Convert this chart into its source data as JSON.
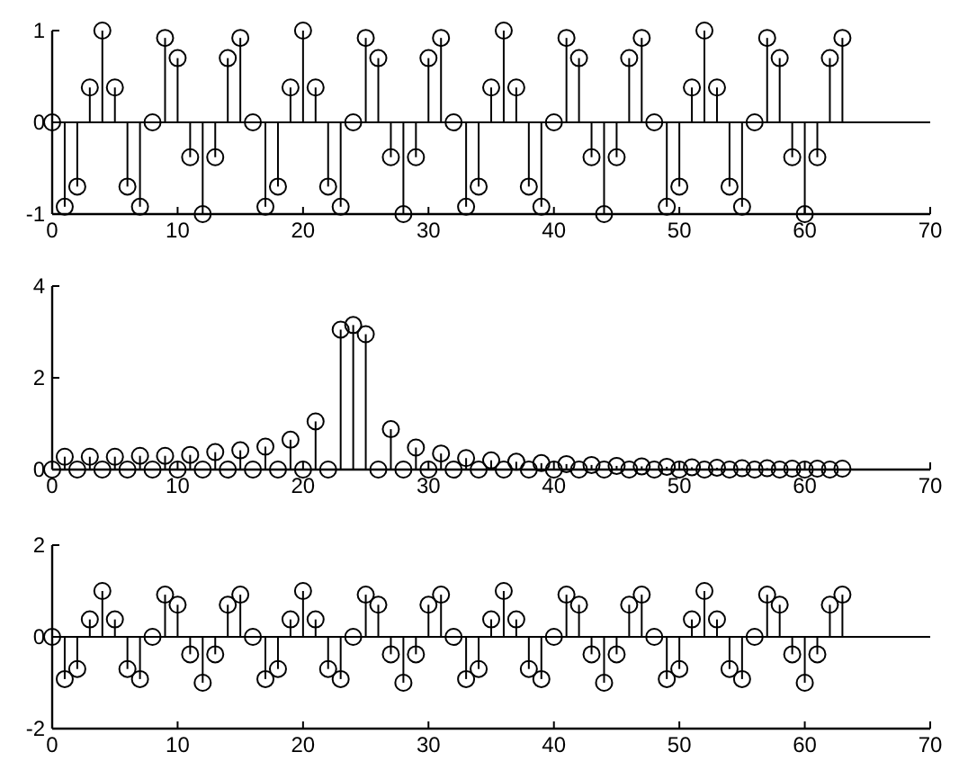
{
  "chart_data": [
    {
      "type": "lollipop",
      "x": [
        0,
        1,
        2,
        3,
        4,
        5,
        6,
        7,
        8,
        9,
        10,
        11,
        12,
        13,
        14,
        15,
        16,
        17,
        18,
        19,
        20,
        21,
        22,
        23,
        24,
        25,
        26,
        27,
        28,
        29,
        30,
        31,
        32,
        33,
        34,
        35,
        36,
        37,
        38,
        39,
        40,
        41,
        42,
        43,
        44,
        45,
        46,
        47,
        48,
        49,
        50,
        51,
        52,
        53,
        54,
        55,
        56,
        57,
        58,
        59,
        60,
        61,
        62,
        63
      ],
      "values": [
        0,
        -0.92,
        -0.7,
        0.38,
        1,
        0.38,
        -0.7,
        -0.92,
        0,
        0.92,
        0.7,
        -0.38,
        -1,
        -0.38,
        0.7,
        0.92,
        0,
        -0.92,
        -0.7,
        0.38,
        1,
        0.38,
        -0.7,
        -0.92,
        0,
        0.92,
        0.7,
        -0.38,
        -1,
        -0.38,
        0.7,
        0.92,
        0,
        -0.92,
        -0.7,
        0.38,
        1,
        0.38,
        -0.7,
        -0.92,
        0,
        0.92,
        0.7,
        -0.38,
        -1,
        -0.38,
        0.7,
        0.92,
        0,
        -0.92,
        -0.7,
        0.38,
        1,
        0.38,
        -0.7,
        -0.92,
        0,
        0.92,
        0.7,
        -0.38,
        -1,
        -0.38,
        0.7,
        0.92
      ],
      "color": "#000000",
      "marker": "circle",
      "xlim": [
        0,
        70
      ],
      "xticks": [
        0,
        10,
        20,
        30,
        40,
        50,
        60,
        70
      ],
      "ylim": [
        -1,
        1
      ],
      "yticks": [
        -1,
        0,
        1
      ],
      "ref_lines": [
        {
          "axis": "y",
          "value": 0
        }
      ]
    },
    {
      "type": "lollipop",
      "x": [
        0,
        1,
        2,
        3,
        4,
        5,
        6,
        7,
        8,
        9,
        10,
        11,
        12,
        13,
        14,
        15,
        16,
        17,
        18,
        19,
        20,
        21,
        22,
        23,
        24,
        25,
        26,
        27,
        28,
        29,
        30,
        31,
        32,
        33,
        34,
        35,
        36,
        37,
        38,
        39,
        40,
        41,
        42,
        43,
        44,
        45,
        46,
        47,
        48,
        49,
        50,
        51,
        52,
        53,
        54,
        55,
        56,
        57,
        58,
        59,
        60,
        61,
        62,
        63
      ],
      "values": [
        0,
        0.28,
        0,
        0.28,
        0,
        0.28,
        0,
        0.3,
        0,
        0.3,
        0,
        0.32,
        0,
        0.38,
        0,
        0.42,
        0,
        0.5,
        0,
        0.65,
        0,
        1.05,
        0,
        3.05,
        3.15,
        2.95,
        0,
        0.88,
        0,
        0.48,
        0,
        0.35,
        0,
        0.25,
        0,
        0.2,
        0,
        0.17,
        0,
        0.14,
        0,
        0.12,
        0,
        0.1,
        0,
        0.08,
        0,
        0.07,
        0,
        0.06,
        0,
        0.05,
        0,
        0.04,
        0,
        0.03,
        0,
        0.03,
        0,
        0.02,
        0,
        0.02,
        0,
        0.02
      ],
      "color": "#000000",
      "marker": "circle",
      "xlim": [
        0,
        70
      ],
      "xticks": [
        0,
        10,
        20,
        30,
        40,
        50,
        60,
        70
      ],
      "ylim": [
        0,
        4
      ],
      "yticks": [
        0,
        2,
        4
      ]
    },
    {
      "type": "lollipop",
      "x": [
        0,
        1,
        2,
        3,
        4,
        5,
        6,
        7,
        8,
        9,
        10,
        11,
        12,
        13,
        14,
        15,
        16,
        17,
        18,
        19,
        20,
        21,
        22,
        23,
        24,
        25,
        26,
        27,
        28,
        29,
        30,
        31,
        32,
        33,
        34,
        35,
        36,
        37,
        38,
        39,
        40,
        41,
        42,
        43,
        44,
        45,
        46,
        47,
        48,
        49,
        50,
        51,
        52,
        53,
        54,
        55,
        56,
        57,
        58,
        59,
        60,
        61,
        62,
        63
      ],
      "values": [
        0,
        -0.92,
        -0.7,
        0.38,
        1,
        0.38,
        -0.7,
        -0.92,
        0,
        0.92,
        0.7,
        -0.38,
        -1,
        -0.38,
        0.7,
        0.92,
        0,
        -0.92,
        -0.7,
        0.38,
        1,
        0.38,
        -0.7,
        -0.92,
        0,
        0.92,
        0.7,
        -0.38,
        -1,
        -0.38,
        0.7,
        0.92,
        0,
        -0.92,
        -0.7,
        0.38,
        1,
        0.38,
        -0.7,
        -0.92,
        0,
        0.92,
        0.7,
        -0.38,
        -1,
        -0.38,
        0.7,
        0.92,
        0,
        -0.92,
        -0.7,
        0.38,
        1,
        0.38,
        -0.7,
        -0.92,
        0,
        0.92,
        0.7,
        -0.38,
        -1,
        -0.38,
        0.7,
        0.92
      ],
      "color": "#000000",
      "marker": "circle",
      "xlim": [
        0,
        70
      ],
      "xticks": [
        0,
        10,
        20,
        30,
        40,
        50,
        60,
        70
      ],
      "ylim": [
        -2,
        2
      ],
      "yticks": [
        -2,
        0,
        2
      ],
      "ref_lines": [
        {
          "axis": "y",
          "value": 0
        }
      ]
    }
  ]
}
